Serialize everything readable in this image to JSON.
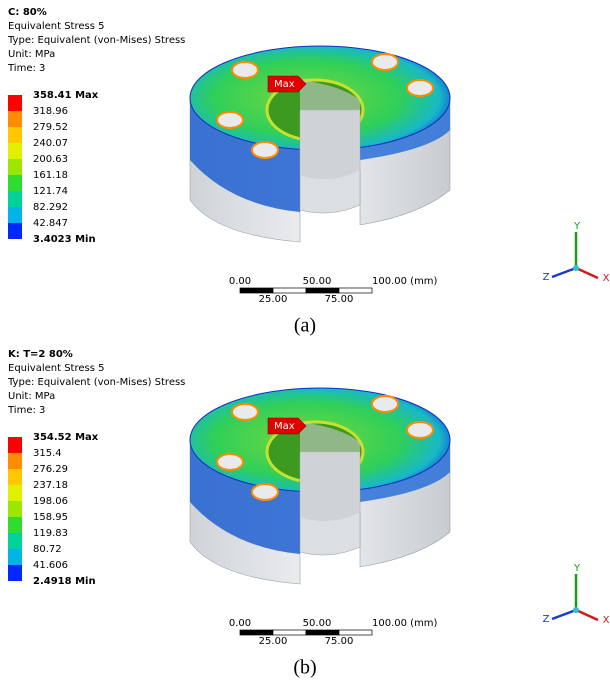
{
  "panels": [
    {
      "header": [
        "C: 80%",
        "Equivalent Stress 5",
        "Type: Equivalent (von-Mises) Stress",
        "Unit: MPa",
        "Time: 3"
      ],
      "legend": [
        "358.41 Max",
        "318.96",
        "279.52",
        "240.07",
        "200.63",
        "161.18",
        "121.74",
        "82.292",
        "42.847",
        "3.4023 Min"
      ],
      "max_label": "Max",
      "scale_top": [
        "0.00",
        "50.00",
        "100.00 (mm)"
      ],
      "scale_bottom": [
        "25.00",
        "75.00"
      ],
      "axes": [
        "Y",
        "Z",
        "X"
      ],
      "caption": "(a)"
    },
    {
      "header": [
        "K: T=2 80%",
        "Equivalent Stress 5",
        "Type: Equivalent (von-Mises) Stress",
        "Unit: MPa",
        "Time: 3"
      ],
      "legend": [
        "354.52 Max",
        "315.4",
        "276.29",
        "237.18",
        "198.06",
        "158.95",
        "119.83",
        "80.72",
        "41.606",
        "2.4918 Min"
      ],
      "max_label": "Max",
      "scale_top": [
        "0.00",
        "50.00",
        "100.00 (mm)"
      ],
      "scale_bottom": [
        "25.00",
        "75.00"
      ],
      "axes": [
        "Y",
        "Z",
        "X"
      ],
      "caption": "(b)"
    }
  ]
}
